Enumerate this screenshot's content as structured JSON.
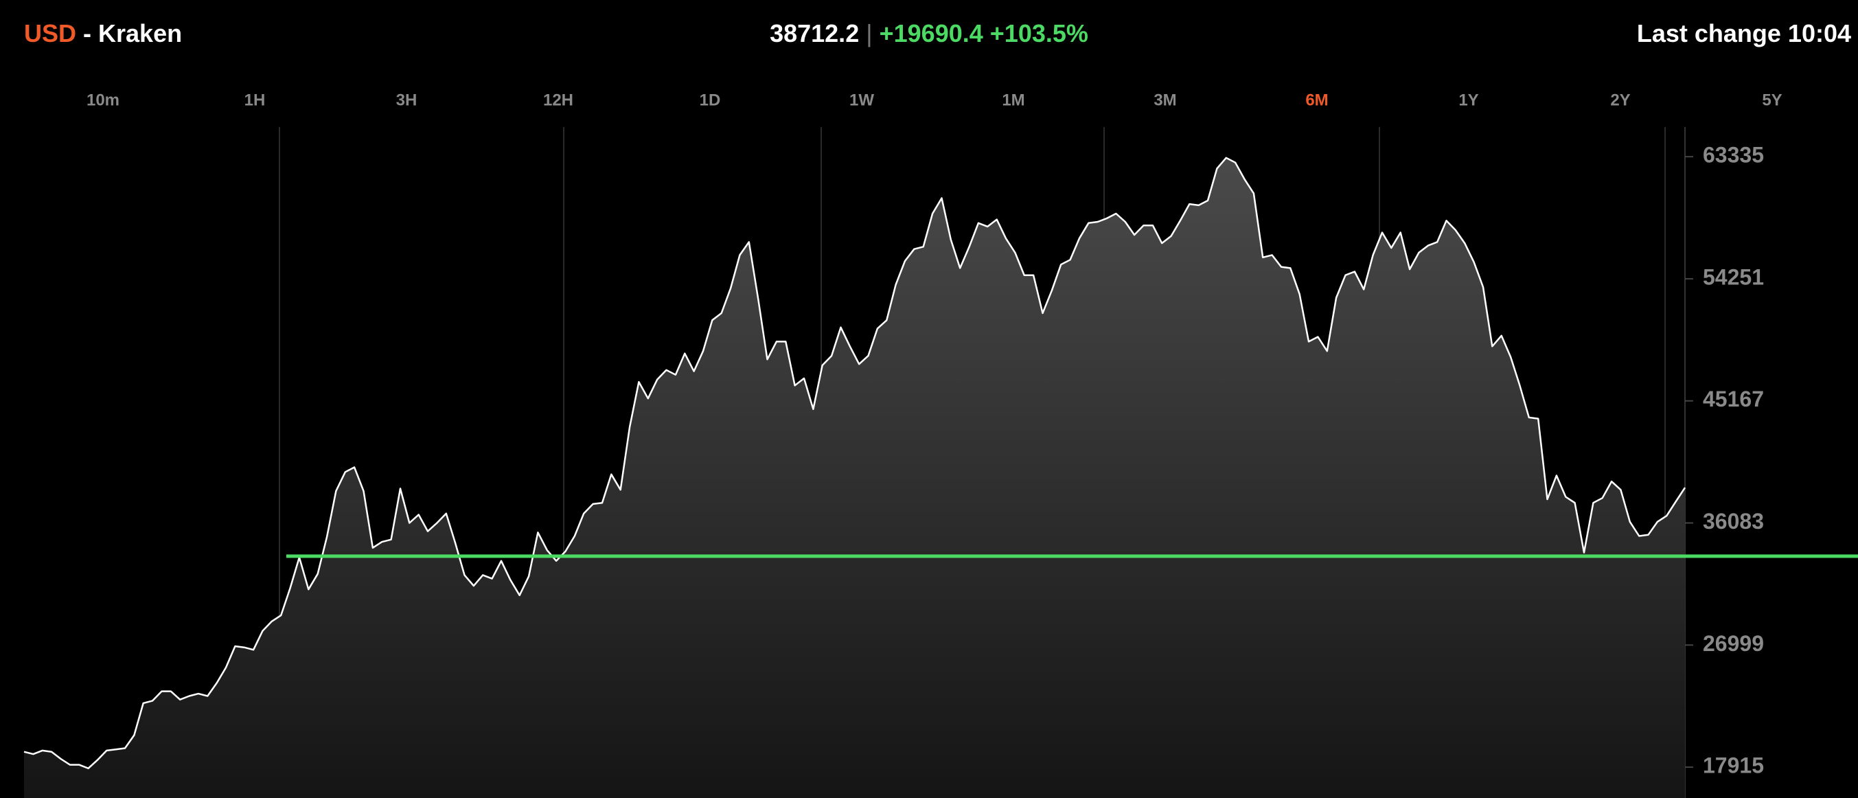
{
  "header": {
    "currency": "USD",
    "exchange": "- Kraken",
    "price": "38712.2",
    "separator": "|",
    "change": "+19690.4",
    "change_pct": "+103.5%",
    "last_change": "Last change 10:04"
  },
  "ranges": [
    "10m",
    "1H",
    "3H",
    "12H",
    "1D",
    "1W",
    "1M",
    "3M",
    "6M",
    "1Y",
    "2Y",
    "5Y"
  ],
  "selected_range": 8,
  "chart_data": {
    "type": "area",
    "color": "#ffffff",
    "values": [
      19061,
      18885,
      19149,
      19061,
      18532,
      18091,
      18091,
      17826,
      18444,
      19149,
      19238,
      19326,
      20296,
      22677,
      22854,
      23559,
      23559,
      22942,
      23207,
      23383,
      23207,
      24177,
      25323,
      26911,
      26823,
      26646,
      28058,
      28763,
      29204,
      31233,
      33526,
      31145,
      32291,
      35025,
      38465,
      39876,
      40229,
      38465,
      34232,
      34673,
      34849,
      38642,
      36084,
      36701,
      35466,
      36084,
      36789,
      34584,
      32203,
      31409,
      32203,
      31938,
      33261,
      31850,
      30704,
      32115,
      35378,
      34055,
      33261,
      33967,
      35114,
      36789,
      37495,
      37583,
      39700,
      38553,
      43228,
      46580,
      45345,
      46756,
      47462,
      47109,
      48696,
      47373,
      48873,
      51166,
      51695,
      53547,
      56017,
      56987,
      52754,
      48255,
      49578,
      49578,
      46315,
      46844,
      44551,
      47814,
      48520,
      50637,
      49226,
      47903,
      48520,
      50549,
      51166,
      53812,
      55576,
      56458,
      56634,
      59104,
      60251,
      57164,
      55047,
      56634,
      58398,
      58134,
      58663,
      57252,
      56193,
      54518,
      54518,
      51695,
      53371,
      55311,
      55664,
      57252,
      58398,
      58487,
      58751,
      59104,
      58487,
      57516,
      58222,
      58222,
      56899,
      57428,
      58575,
      59810,
      59721,
      60074,
      62456,
      63249,
      62897,
      61662,
      60603,
      55841,
      56017,
      55135,
      55047,
      53106,
      49578,
      49931,
      48873,
      52842,
      54518,
      54782,
      53459,
      56017,
      57693,
      56546,
      57693,
      54959,
      56193,
      56723,
      56987,
      58575,
      57869,
      56899,
      55488,
      53636,
      49226,
      50019,
      48432,
      46315,
      43934,
      43845,
      37848,
      39612,
      38024,
      37583,
      33879,
      37583,
      37936,
      39171,
      38553,
      36172,
      35114,
      35202,
      36172,
      36613,
      37671,
      38712.2
    ],
    "ylim": [
      15620,
      65540
    ],
    "yticks": [
      17915,
      26999,
      36083,
      45167,
      54251,
      63335
    ],
    "reference_line": {
      "value": 33614,
      "color": "#4cd964"
    }
  }
}
